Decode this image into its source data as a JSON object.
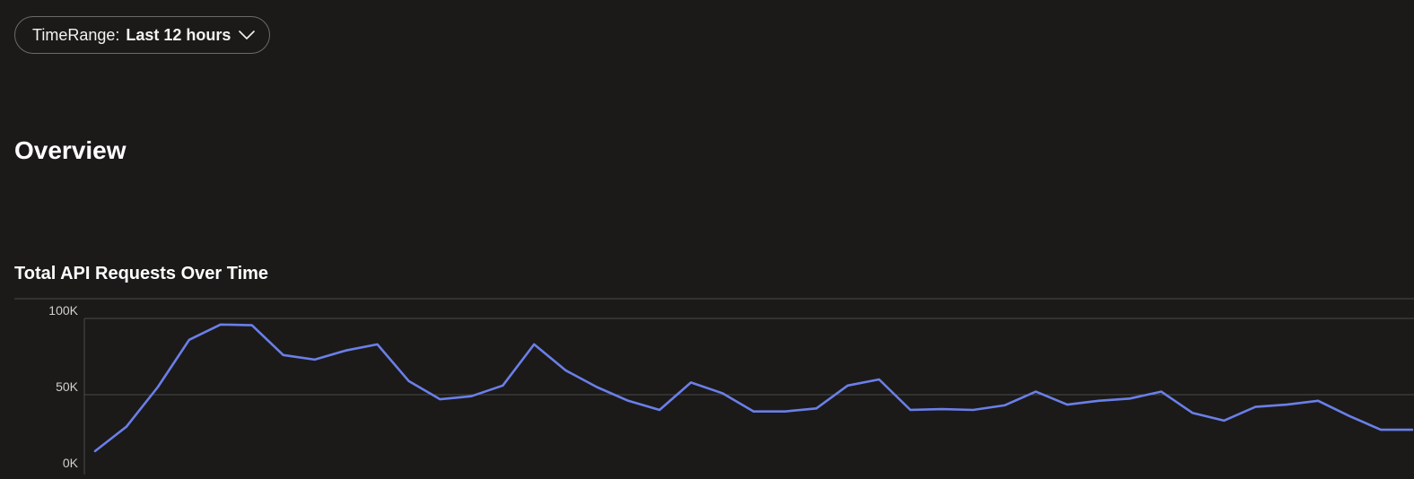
{
  "filter": {
    "label": "TimeRange:",
    "value": "Last 12 hours",
    "icon": "chevron-down-icon"
  },
  "page": {
    "title": "Overview"
  },
  "colors": {
    "background": "#1b1a19",
    "series": "#6b7fe8",
    "grid": "#4a4948"
  },
  "chart_data": {
    "type": "line",
    "title": "Total API Requests Over Time",
    "xlabel": "",
    "ylabel": "",
    "ylim": [
      0,
      100000
    ],
    "y_ticks": [
      {
        "value": 0,
        "label": "0K"
      },
      {
        "value": 50000,
        "label": "50K"
      },
      {
        "value": 100000,
        "label": "100K"
      }
    ],
    "grid": true,
    "series": [
      {
        "values": [
          13000,
          29000,
          55000,
          86000,
          96000,
          95500,
          76000,
          73000,
          79000,
          83000,
          59000,
          47000,
          49000,
          56000,
          83000,
          66000,
          55000,
          46000,
          40000,
          58000,
          51000,
          39000,
          39000,
          41000,
          56000,
          60000,
          40000,
          40500,
          40000,
          43000,
          52000,
          43500,
          46000,
          47500,
          52000,
          38000,
          33000,
          42000,
          43500,
          46000,
          36000,
          27000,
          27000
        ]
      }
    ]
  }
}
